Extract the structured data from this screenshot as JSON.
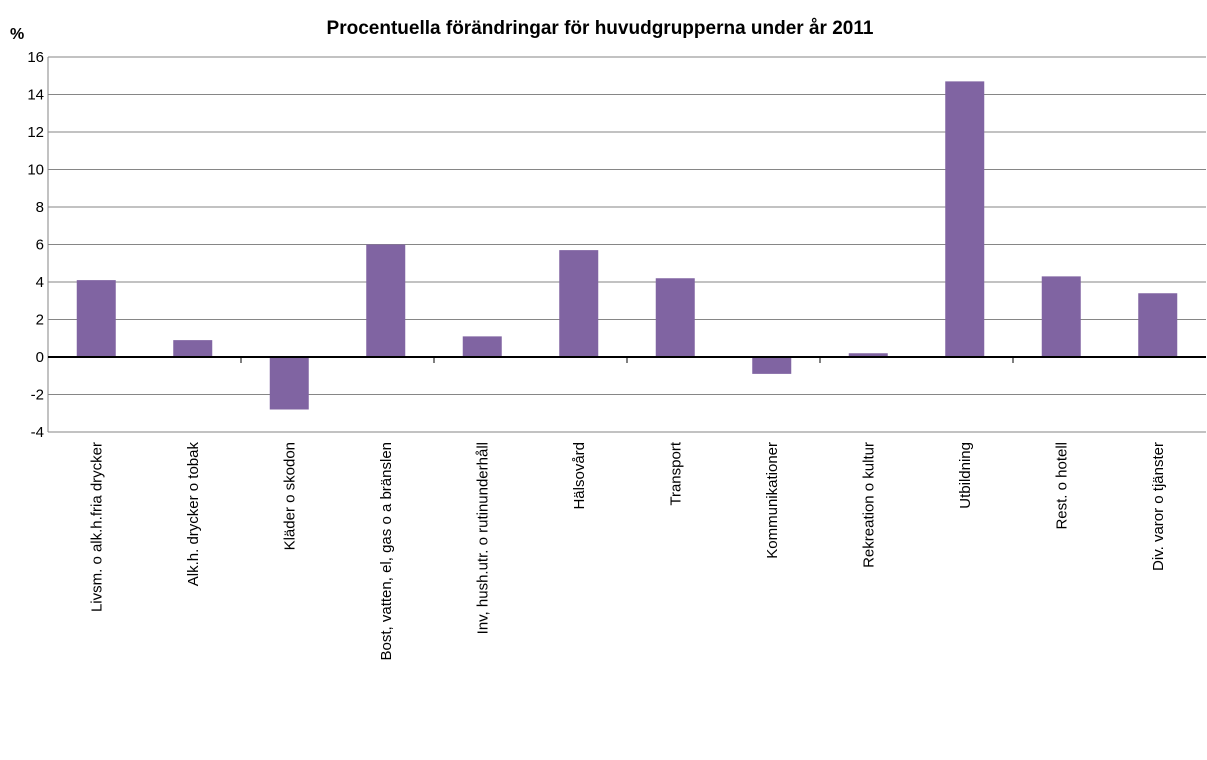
{
  "chart_data": {
    "type": "bar",
    "title": "Procentuella förändringar för huvudgrupperna under år 2011",
    "y_label": "%",
    "categories": [
      "Livsm. o alk.h.fria drycker",
      "Alk.h. drycker o tobak",
      "Kläder o skodon",
      "Bost, vatten, el, gas o a bränslen",
      "Inv, hush.utr. o rutinunderhåll",
      "Hälsovård",
      "Transport",
      "Kommunikationer",
      "Rekreation o kultur",
      "Utbildning",
      "Rest. o hotell",
      "Div. varor o tjänster"
    ],
    "values": [
      4.1,
      0.9,
      -2.8,
      6.0,
      1.1,
      5.7,
      4.2,
      -0.9,
      0.2,
      14.7,
      4.3,
      3.4
    ],
    "color": "#8064a2",
    "ylim": [
      -4,
      16
    ],
    "yticks": [
      -4,
      -2,
      0,
      2,
      4,
      6,
      8,
      10,
      12,
      14,
      16
    ],
    "grid": true
  }
}
